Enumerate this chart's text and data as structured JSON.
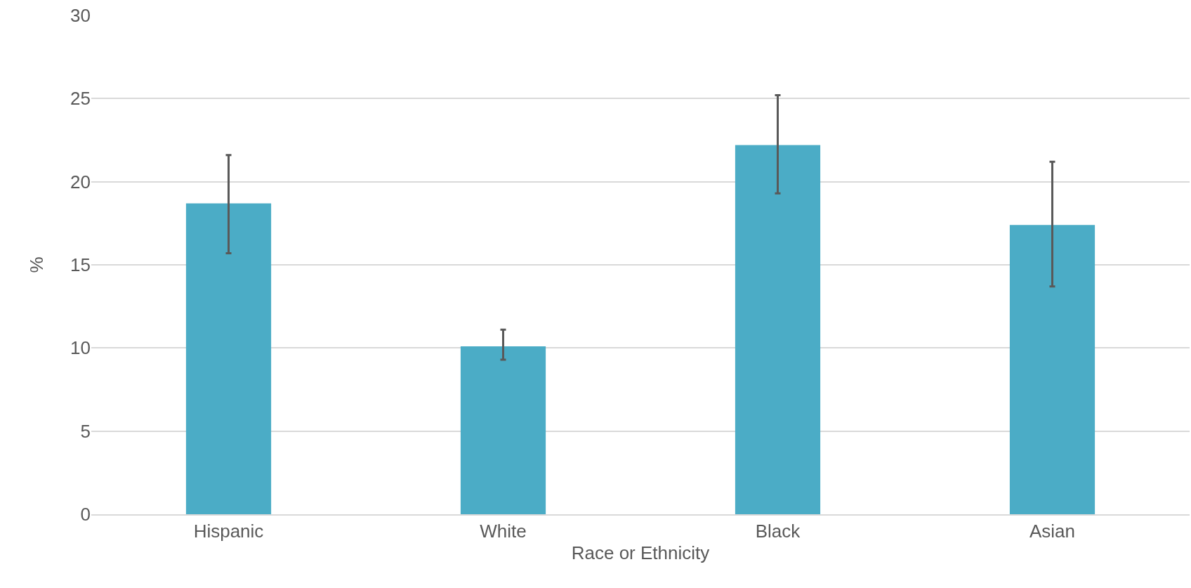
{
  "chart_data": {
    "type": "bar",
    "xlabel": "Race or Ethnicity",
    "ylabel": "%",
    "categories": [
      "Hispanic",
      "White",
      "Black",
      "Asian"
    ],
    "values": [
      18.7,
      10.1,
      22.2,
      17.4
    ],
    "errors": [
      [
        15.7,
        21.6
      ],
      [
        9.3,
        11.1
      ],
      [
        19.3,
        25.2
      ],
      [
        13.7,
        21.2
      ]
    ],
    "color": "#4bacc6",
    "ylim": [
      0,
      30
    ],
    "yticks": [
      0,
      5,
      10,
      15,
      20,
      25,
      30
    ],
    "grid": "y"
  }
}
